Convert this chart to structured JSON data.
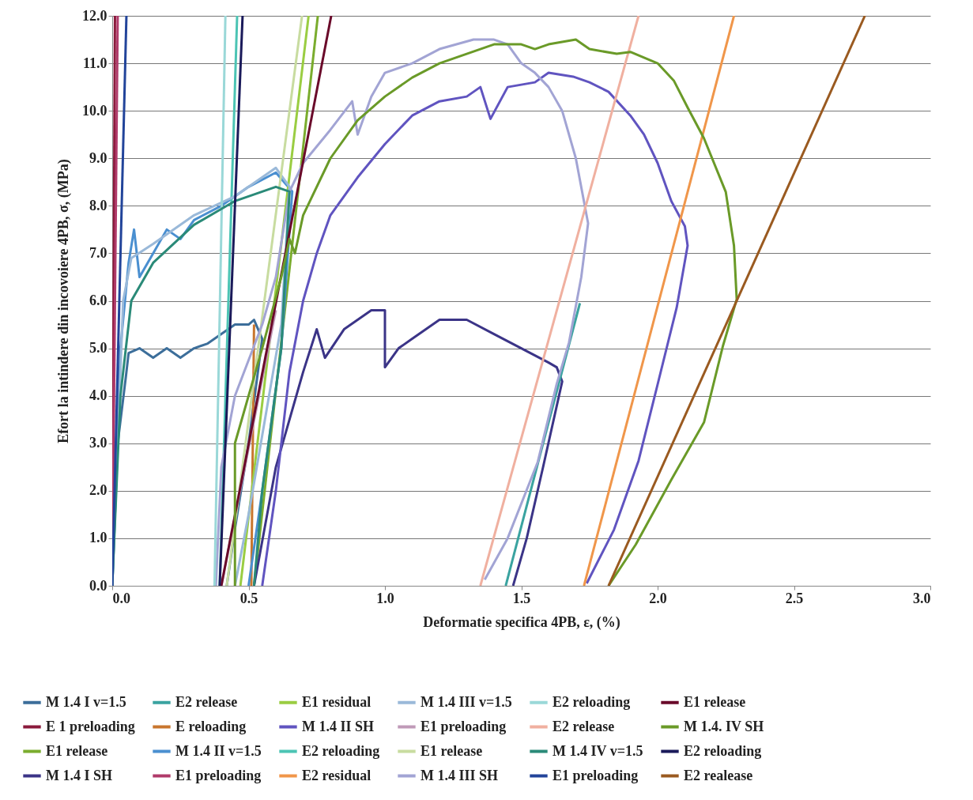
{
  "chart_data": {
    "type": "line",
    "xlabel": "Deformatie specifica 4PB, ε, (%)",
    "ylabel": "Efort la intindere din incovoiere 4PB, σ, (MPa)",
    "xlim": [
      0,
      3
    ],
    "xticks": [
      {
        "value": 0,
        "label": "0.0"
      },
      {
        "value": 0.5,
        "label": "0.5"
      },
      {
        "value": 1,
        "label": "1.0"
      },
      {
        "value": 1.5,
        "label": "1.5"
      },
      {
        "value": 2,
        "label": "2.0"
      },
      {
        "value": 2.5,
        "label": "2.5"
      },
      {
        "value": 3,
        "label": "3.0"
      }
    ],
    "ylim": [
      0,
      12
    ],
    "yticks": [
      {
        "value": 0,
        "label": "0.0"
      },
      {
        "value": 1,
        "label": "1.0"
      },
      {
        "value": 2,
        "label": "2.0"
      },
      {
        "value": 3,
        "label": "3.0"
      },
      {
        "value": 4,
        "label": "4.0"
      },
      {
        "value": 5,
        "label": "5.0"
      },
      {
        "value": 6,
        "label": "6.0"
      },
      {
        "value": 7,
        "label": "7.0"
      },
      {
        "value": 8,
        "label": "8.0"
      },
      {
        "value": 9,
        "label": "9.0"
      },
      {
        "value": 10,
        "label": "10.0"
      },
      {
        "value": 11,
        "label": "11.0"
      },
      {
        "value": 12,
        "label": "12.0"
      }
    ],
    "grid": "y",
    "legend": "bottom",
    "series": [
      {
        "name": "M 1.4 I v=1.5",
        "color": "#3c6e9a",
        "x": [
          0,
          0.02,
          0.05,
          0.06,
          0.1,
          0.15,
          0.2,
          0.25,
          0.3,
          0.35,
          0.4,
          0.45,
          0.5,
          0.52,
          0.55,
          0.5,
          0.45,
          0.42
        ],
        "values": [
          0,
          3,
          4.4,
          4.9,
          5.0,
          4.8,
          5.0,
          4.8,
          5.0,
          5.1,
          5.3,
          5.5,
          5.5,
          5.6,
          5.2,
          3.0,
          1.2,
          0
        ]
      },
      {
        "name": "E 1 preloading",
        "color": "#8b1a3c",
        "x": [
          0,
          0.01
        ],
        "values": [
          0,
          12
        ]
      },
      {
        "name": "E1 release",
        "color": "#7aac2e",
        "x": [
          0.52,
          0.754
        ],
        "values": [
          0,
          12
        ]
      },
      {
        "name": "M 1.4 I SH",
        "color": "#3b3487",
        "x": [
          0.52,
          0.6,
          0.7,
          0.75,
          0.78,
          0.85,
          0.9,
          0.95,
          1.0,
          1.0,
          1.05,
          1.1,
          1.2,
          1.3,
          1.4,
          1.5,
          1.6,
          1.63,
          1.65,
          1.58,
          1.52,
          1.47
        ],
        "values": [
          0,
          2.5,
          4.5,
          5.4,
          4.8,
          5.4,
          5.6,
          5.8,
          5.8,
          4.6,
          5.0,
          5.2,
          5.6,
          5.6,
          5.3,
          5.0,
          4.7,
          4.6,
          4.3,
          2.5,
          1.0,
          0
        ]
      },
      {
        "name": "E2 release",
        "color": "#3aa3a0",
        "x": [
          1.443,
          1.715
        ],
        "values": [
          0,
          5.95
        ]
      },
      {
        "name": "E reloading",
        "color": "#c8762e",
        "x": [
          0.51,
          0.52
        ],
        "values": [
          0,
          5.5
        ]
      },
      {
        "name": "M 1.4 II v=1.5",
        "color": "#4a8fd0",
        "x": [
          0,
          0.03,
          0.06,
          0.08,
          0.1,
          0.15,
          0.2,
          0.25,
          0.3,
          0.4,
          0.5,
          0.6,
          0.63,
          0.66,
          0.62,
          0.55,
          0.5
        ],
        "values": [
          0,
          5,
          6.8,
          7.5,
          6.5,
          7.0,
          7.5,
          7.3,
          7.7,
          8.0,
          8.4,
          8.7,
          8.5,
          8.3,
          5,
          2,
          0
        ]
      },
      {
        "name": "E1 preloading",
        "color": "#b03a6a",
        "x": [
          0,
          0.02
        ],
        "values": [
          0,
          12
        ]
      },
      {
        "name": "E1 residual",
        "color": "#9acd42",
        "x": [
          0.47,
          0.72
        ],
        "values": [
          0,
          12
        ]
      },
      {
        "name": "M 1.4 II SH",
        "color": "#6054c0",
        "x": [
          0.55,
          0.6,
          0.65,
          0.7,
          0.75,
          0.8,
          0.9,
          1.0,
          1.1,
          1.2,
          1.3,
          1.35,
          1.387,
          1.45,
          1.55,
          1.6,
          1.69,
          1.75,
          1.82,
          1.9,
          1.95,
          2.0,
          2.05,
          2.1,
          2.11,
          2.07,
          2.0,
          1.93,
          1.84,
          1.74
        ],
        "values": [
          0,
          2,
          4.5,
          6.0,
          7.0,
          7.8,
          8.6,
          9.3,
          9.9,
          10.2,
          10.3,
          10.5,
          9.83,
          10.5,
          10.6,
          10.8,
          10.72,
          10.6,
          10.4,
          9.9,
          9.5,
          8.9,
          8.1,
          7.57,
          7.16,
          5.86,
          4.24,
          2.63,
          1.18,
          0.05
        ]
      },
      {
        "name": "E2 reloading",
        "color": "#4cc4b4",
        "x": [
          0.394,
          0.458
        ],
        "values": [
          0,
          12
        ]
      },
      {
        "name": "E2 residual",
        "color": "#f0964a",
        "x": [
          1.73,
          2.28
        ],
        "values": [
          0,
          12
        ]
      },
      {
        "name": "M 1.4 III v=1.5",
        "color": "#9ab9d9",
        "x": [
          0,
          0.04,
          0.07,
          0.15,
          0.3,
          0.45,
          0.6,
          0.65,
          0.62,
          0.5,
          0.45
        ],
        "values": [
          0,
          6,
          6.9,
          7.2,
          7.8,
          8.2,
          8.8,
          8.4,
          5.5,
          1.5,
          0
        ]
      },
      {
        "name": "E1 preloading",
        "color": "#c09ab8",
        "x": [
          0.4,
          0.6
        ],
        "values": [
          0,
          5.8
        ]
      },
      {
        "name": "E1 release",
        "color": "#c8dca0",
        "x": [
          0.42,
          0.696
        ],
        "values": [
          0,
          12
        ]
      },
      {
        "name": "M 1.4 III SH",
        "color": "#a2a4d4",
        "x": [
          0.38,
          0.4,
          0.45,
          0.55,
          0.6,
          0.65,
          0.7,
          0.8,
          0.88,
          0.9,
          0.95,
          1.0,
          1.1,
          1.2,
          1.325,
          1.4,
          1.45,
          1.5,
          1.55,
          1.6,
          1.65,
          1.7,
          1.745,
          1.72,
          1.675,
          1.63,
          1.56,
          1.45,
          1.366
        ],
        "values": [
          0,
          2.5,
          4,
          5.5,
          6.5,
          8.3,
          8.9,
          9.6,
          10.2,
          9.5,
          10.3,
          10.8,
          11.0,
          11.3,
          11.5,
          11.5,
          11.4,
          11.0,
          10.8,
          10.5,
          10.0,
          9.0,
          7.63,
          6.5,
          5.12,
          4.25,
          2.6,
          1.0,
          0.13
        ]
      },
      {
        "name": "E2 reloading",
        "color": "#9ad8d8",
        "x": [
          0.375,
          0.415
        ],
        "values": [
          0,
          12
        ]
      },
      {
        "name": "E2 release",
        "color": "#f0b0a0",
        "x": [
          1.35,
          1.93
        ],
        "values": [
          0,
          12
        ]
      },
      {
        "name": "M 1.4 IV v=1.5",
        "color": "#2a8a78",
        "x": [
          0,
          0.03,
          0.07,
          0.15,
          0.3,
          0.45,
          0.6,
          0.65,
          0.62,
          0.55,
          0.52
        ],
        "values": [
          0,
          4,
          6.0,
          6.8,
          7.6,
          8.1,
          8.4,
          8.3,
          5,
          2,
          0
        ]
      },
      {
        "name": "E1 preloading",
        "color": "#22449a",
        "x": [
          0,
          0.052
        ],
        "values": [
          0,
          12
        ]
      },
      {
        "name": "E1 release",
        "color": "#6a0a2a",
        "x": [
          0.4,
          0.803
        ],
        "values": [
          0,
          12
        ]
      },
      {
        "name": "M 1.4. IV SH",
        "color": "#6a9a28",
        "x": [
          0.45,
          0.45,
          0.5,
          0.55,
          0.62,
          0.65,
          0.67,
          0.7,
          0.8,
          0.9,
          1.0,
          1.1,
          1.2,
          1.3,
          1.4,
          1.5,
          1.55,
          1.6,
          1.7,
          1.75,
          1.85,
          1.9,
          2.0,
          2.06,
          2.11,
          2.17,
          2.25,
          2.28,
          2.29,
          2.24,
          2.17,
          2.05,
          1.92,
          1.82
        ],
        "values": [
          0,
          3,
          4.0,
          5,
          6.5,
          7.3,
          7.0,
          7.8,
          9.0,
          9.8,
          10.3,
          10.7,
          11.0,
          11.2,
          11.4,
          11.4,
          11.3,
          11.4,
          11.5,
          11.3,
          11.2,
          11.24,
          11.0,
          10.63,
          10.07,
          9.42,
          8.29,
          7.16,
          6.03,
          5.06,
          3.44,
          2.23,
          0.87,
          0
        ]
      },
      {
        "name": "E2 reloading",
        "color": "#1a1a5a",
        "x": [
          0.394,
          0.478
        ],
        "values": [
          0,
          12
        ]
      },
      {
        "name": "E2 realease",
        "color": "#9a5a20",
        "x": [
          1.82,
          2.76
        ],
        "values": [
          0,
          12
        ]
      }
    ]
  }
}
